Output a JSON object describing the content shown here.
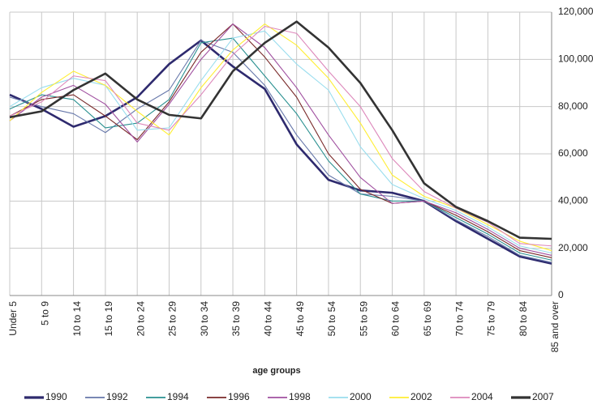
{
  "chart_data": {
    "type": "line",
    "x_label": "age groups",
    "categories": [
      "Under 5",
      "5 to 9",
      "10 to 14",
      "15 to 19",
      "20 to 24",
      "25 to 29",
      "30 to 34",
      "35 to 39",
      "40 to 44",
      "45 to 49",
      "50 to 54",
      "55 to 59",
      "60 to 64",
      "65 to 69",
      "70 to 74",
      "75 to 79",
      "80 to 84",
      "85 and over"
    ],
    "ylim": [
      0,
      120000
    ],
    "yticks": [
      0,
      {
        "value": 20000,
        "label": "20,000"
      },
      {
        "value": 40000,
        "label": "40,000"
      },
      {
        "value": 60000,
        "label": "60,000"
      },
      {
        "value": 80000,
        "label": "80,000"
      },
      {
        "value": 100000,
        "label": "100,000"
      },
      {
        "value": 120000,
        "label": "120,000"
      }
    ],
    "grid": true,
    "series": [
      {
        "name": "1990",
        "color": "#2e2a6e",
        "values": [
          85000,
          79000,
          71500,
          76000,
          84000,
          98000,
          108000,
          97000,
          87500,
          64000,
          49000,
          44500,
          43500,
          40000,
          31500,
          24000,
          16500,
          13500
        ]
      },
      {
        "name": "1992",
        "color": "#6677aa",
        "values": [
          84000,
          80000,
          77000,
          69000,
          79000,
          87000,
          108000,
          103000,
          89000,
          68000,
          51000,
          43000,
          42000,
          40000,
          32000,
          25000,
          17000,
          14000
        ]
      },
      {
        "name": "1994",
        "color": "#2a9090",
        "values": [
          79000,
          85000,
          83000,
          71000,
          73000,
          83000,
          107000,
          109000,
          93000,
          77000,
          57000,
          43000,
          40000,
          40000,
          33000,
          26000,
          18000,
          15000
        ]
      },
      {
        "name": "1996",
        "color": "#7a2a2a",
        "values": [
          76000,
          83000,
          85000,
          76000,
          66000,
          82000,
          103000,
          115000,
          101000,
          84000,
          60000,
          45000,
          39000,
          40000,
          34000,
          27000,
          19000,
          16000
        ]
      },
      {
        "name": "1998",
        "color": "#a050a0",
        "values": [
          74000,
          84000,
          89000,
          81000,
          65000,
          81000,
          100000,
          115000,
          105000,
          88000,
          68000,
          50000,
          39000,
          40000,
          35000,
          28000,
          20000,
          17000
        ]
      },
      {
        "name": "2000",
        "color": "#99ddee",
        "values": [
          80000,
          88000,
          92000,
          89000,
          70000,
          71000,
          91000,
          109000,
          112000,
          98000,
          87000,
          63000,
          47000,
          41000,
          36000,
          29000,
          21000,
          18000
        ]
      },
      {
        "name": "2002",
        "color": "#ffee33",
        "values": [
          74000,
          86000,
          95000,
          89000,
          78000,
          68000,
          88000,
          104000,
          115000,
          106000,
          92000,
          73000,
          51000,
          42000,
          37000,
          30000,
          23000,
          19000
        ]
      },
      {
        "name": "2004",
        "color": "#dd88bb",
        "values": [
          76000,
          82000,
          93000,
          91000,
          73000,
          70000,
          85000,
          102000,
          114000,
          111000,
          95000,
          80000,
          58000,
          44000,
          37000,
          31000,
          22000,
          21000
        ]
      },
      {
        "name": "2007",
        "color": "#333333",
        "values": [
          75500,
          78000,
          87000,
          94000,
          83000,
          76500,
          75000,
          95000,
          107000,
          116000,
          105000,
          90000,
          70000,
          47500,
          37500,
          31500,
          24500,
          24000
        ]
      }
    ]
  }
}
